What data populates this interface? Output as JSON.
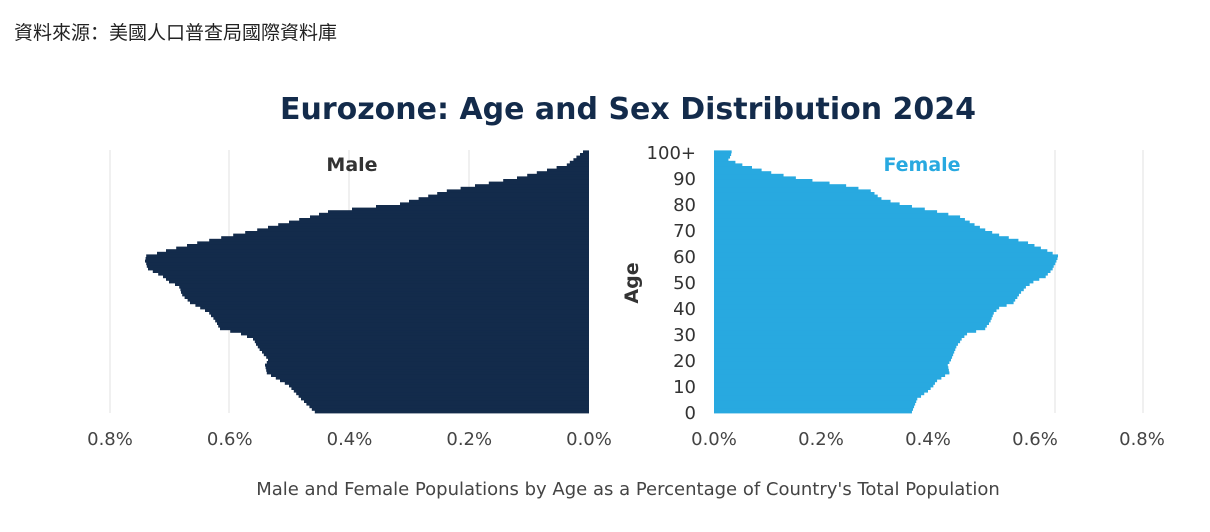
{
  "source": "資料來源：美國人口普查局國際資料庫",
  "chart_data": {
    "type": "bar",
    "orientation": "horizontal-pyramid",
    "title": "Eurozone: Age and Sex Distribution 2024",
    "xlabel": "Male and Female Populations by Age as a Percentage of Country's Total Population",
    "ylabel": "Age",
    "male_label": "Male",
    "female_label": "Female",
    "colors": {
      "male": "#132b4b",
      "female": "#28a9e0",
      "title": "#132b4b"
    },
    "male_ticks": [
      "0.8%",
      "0.6%",
      "0.4%",
      "0.2%",
      "0.0%"
    ],
    "female_ticks": [
      "0.0%",
      "0.2%",
      "0.4%",
      "0.6%",
      "0.8%"
    ],
    "age_ticks": [
      "0",
      "10",
      "20",
      "30",
      "40",
      "50",
      "60",
      "70",
      "80",
      "90",
      "100+"
    ],
    "xlim_percent": [
      0,
      0.8
    ],
    "ages": "0 to 100+ (single years)",
    "male": [
      0.457,
      0.462,
      0.466,
      0.471,
      0.475,
      0.48,
      0.484,
      0.488,
      0.492,
      0.496,
      0.5,
      0.507,
      0.515,
      0.522,
      0.53,
      0.537,
      0.538,
      0.539,
      0.54,
      0.537,
      0.535,
      0.538,
      0.542,
      0.545,
      0.549,
      0.552,
      0.555,
      0.557,
      0.56,
      0.57,
      0.58,
      0.598,
      0.615,
      0.618,
      0.62,
      0.623,
      0.626,
      0.63,
      0.633,
      0.64,
      0.648,
      0.656,
      0.665,
      0.669,
      0.674,
      0.678,
      0.68,
      0.681,
      0.683,
      0.69,
      0.7,
      0.705,
      0.71,
      0.718,
      0.727,
      0.735,
      0.737,
      0.738,
      0.74,
      0.739,
      0.738,
      0.72,
      0.705,
      0.688,
      0.67,
      0.653,
      0.633,
      0.613,
      0.593,
      0.573,
      0.553,
      0.535,
      0.518,
      0.5,
      0.483,
      0.465,
      0.45,
      0.435,
      0.395,
      0.355,
      0.315,
      0.3,
      0.284,
      0.268,
      0.253,
      0.237,
      0.214,
      0.19,
      0.167,
      0.143,
      0.12,
      0.103,
      0.087,
      0.07,
      0.054,
      0.037,
      0.032,
      0.026,
      0.021,
      0.015,
      0.01
    ],
    "female": [
      0.37,
      0.372,
      0.374,
      0.376,
      0.378,
      0.38,
      0.387,
      0.393,
      0.4,
      0.405,
      0.41,
      0.413,
      0.417,
      0.425,
      0.432,
      0.44,
      0.439,
      0.438,
      0.437,
      0.44,
      0.443,
      0.445,
      0.447,
      0.449,
      0.451,
      0.453,
      0.456,
      0.46,
      0.463,
      0.468,
      0.473,
      0.49,
      0.507,
      0.51,
      0.514,
      0.517,
      0.519,
      0.521,
      0.523,
      0.528,
      0.533,
      0.547,
      0.56,
      0.563,
      0.567,
      0.57,
      0.574,
      0.579,
      0.583,
      0.59,
      0.597,
      0.608,
      0.62,
      0.624,
      0.629,
      0.633,
      0.635,
      0.638,
      0.64,
      0.642,
      0.643,
      0.633,
      0.623,
      0.611,
      0.599,
      0.587,
      0.569,
      0.551,
      0.533,
      0.52,
      0.507,
      0.497,
      0.487,
      0.478,
      0.469,
      0.46,
      0.438,
      0.417,
      0.394,
      0.37,
      0.347,
      0.33,
      0.313,
      0.306,
      0.3,
      0.293,
      0.27,
      0.247,
      0.216,
      0.184,
      0.153,
      0.13,
      0.107,
      0.089,
      0.071,
      0.053,
      0.04,
      0.027,
      0.03,
      0.032,
      0.033
    ]
  }
}
